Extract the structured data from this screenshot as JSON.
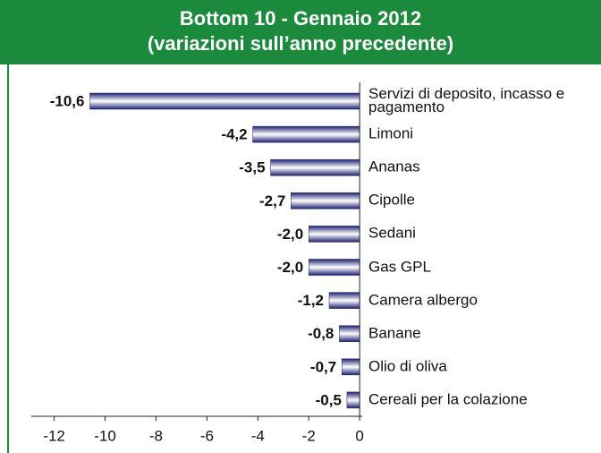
{
  "chart_data": {
    "type": "barh",
    "title": "Bottom 10 - Gennaio 2012",
    "subtitle": "(variazioni sull’anno precedente)",
    "categories": [
      "Servizi di deposito, incasso e pagamento",
      "Limoni",
      "Ananas",
      "Cipolle",
      "Sedani",
      "Gas GPL",
      "Camera albergo",
      "Banane",
      "Olio di oliva",
      "Cereali per la colazione"
    ],
    "values": [
      -10.6,
      -4.2,
      -3.5,
      -2.7,
      -2.0,
      -2.0,
      -1.2,
      -0.8,
      -0.7,
      -0.5
    ],
    "value_labels": [
      "-10,6",
      "-4,2",
      "-3,5",
      "-2,7",
      "-2,0",
      "-2,0",
      "-1,2",
      "-0,8",
      "-0,7",
      "-0,5"
    ],
    "color": "#1c2170",
    "xlim": [
      -12.9,
      0.1
    ],
    "xticks": [
      -12,
      -10,
      -8,
      -6,
      -4,
      -2,
      0
    ]
  }
}
